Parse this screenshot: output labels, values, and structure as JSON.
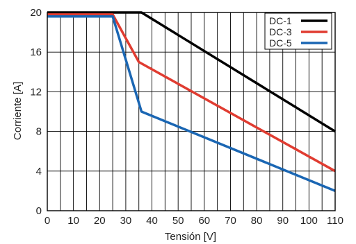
{
  "chart_data": {
    "type": "line",
    "xlabel": "Tensión [V]",
    "ylabel": "Corriente [A]",
    "xlim": [
      0,
      110
    ],
    "ylim": [
      0,
      20
    ],
    "x_ticks": [
      0,
      10,
      20,
      30,
      40,
      50,
      60,
      70,
      80,
      90,
      100,
      110
    ],
    "y_ticks": [
      0,
      4,
      8,
      12,
      16,
      20
    ],
    "x_grid_step": 5,
    "grid": true,
    "legend_position": "top-right",
    "series": [
      {
        "name": "DC-1",
        "color": "#000000",
        "points": [
          [
            0,
            20
          ],
          [
            36,
            20
          ],
          [
            110,
            8
          ]
        ]
      },
      {
        "name": "DC-3",
        "color": "#e03c31",
        "points": [
          [
            0,
            19.8
          ],
          [
            25,
            19.8
          ],
          [
            35,
            15
          ],
          [
            110,
            4
          ]
        ]
      },
      {
        "name": "DC-5",
        "color": "#1a66b3",
        "points": [
          [
            0,
            19.6
          ],
          [
            25,
            19.6
          ],
          [
            36,
            10
          ],
          [
            110,
            2
          ]
        ]
      }
    ]
  }
}
